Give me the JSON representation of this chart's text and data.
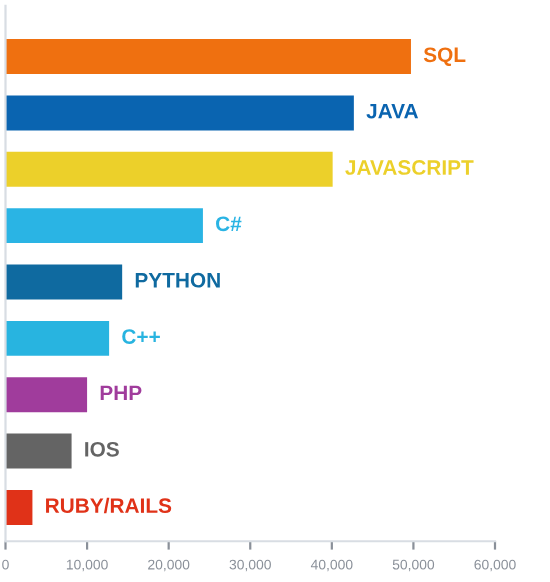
{
  "chart_data": {
    "type": "bar",
    "orientation": "horizontal",
    "categories": [
      "SQL",
      "JAVA",
      "JAVASCRIPT",
      "C#",
      "PYTHON",
      "C++",
      "PHP",
      "IOS",
      "RUBY/RAILS"
    ],
    "values": [
      49700,
      42700,
      40100,
      24200,
      14300,
      12700,
      10000,
      8100,
      3300
    ],
    "colors": [
      "#ef7010",
      "#0a64b0",
      "#ecd02a",
      "#2ab4e4",
      "#0f6aa0",
      "#28b4e0",
      "#a03c9c",
      "#646464",
      "#e03218"
    ],
    "xlim": [
      0,
      60000
    ],
    "xticks": [
      {
        "value": 0,
        "label": "0"
      },
      {
        "value": 10000,
        "label": "10,000"
      },
      {
        "value": 20000,
        "label": "20,000"
      },
      {
        "value": 30000,
        "label": "30,000"
      },
      {
        "value": 40000,
        "label": "40,000"
      },
      {
        "value": 50000,
        "label": "50,000"
      },
      {
        "value": 60000,
        "label": "60,000"
      }
    ],
    "grid": false
  }
}
